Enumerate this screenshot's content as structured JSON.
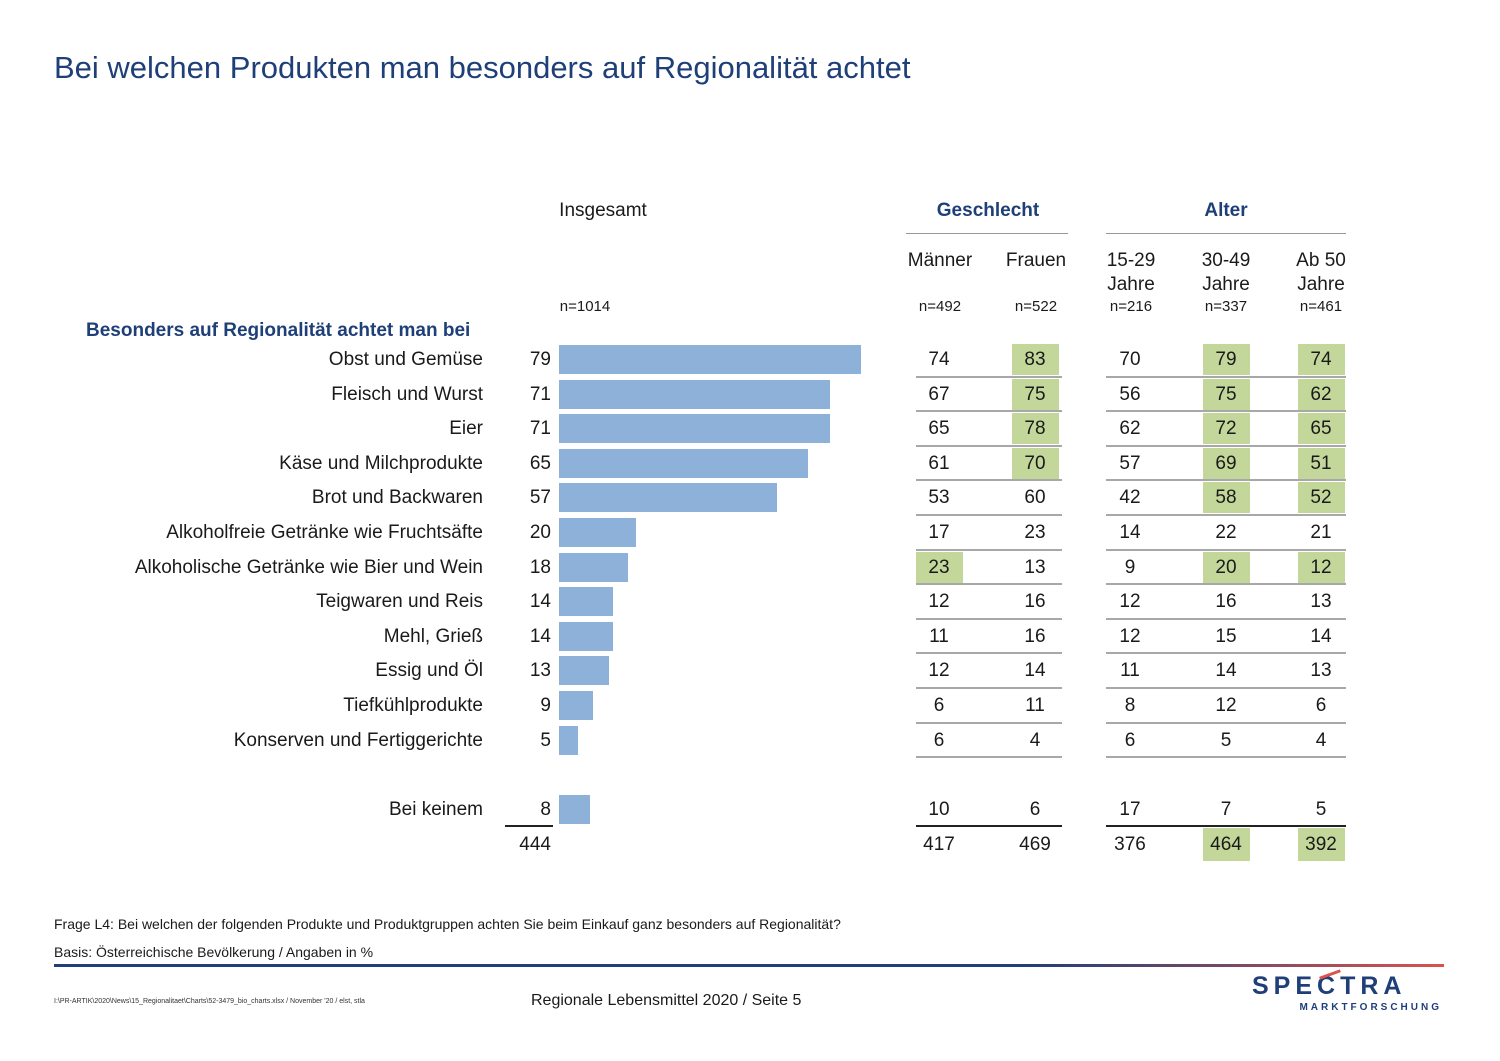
{
  "title": "Bei welchen Produkten man besonders auf Regionalität achtet",
  "headers": {
    "insgesamt": "Insgesamt",
    "geschlecht": "Geschlecht",
    "alter": "Alter",
    "maenner": "Männer",
    "frauen": "Frauen",
    "age1a": "15-29",
    "age1b": "Jahre",
    "age2a": "30-49",
    "age2b": "Jahre",
    "age3a": "Ab 50",
    "age3b": "Jahre"
  },
  "n": {
    "insgesamt": "n=1014",
    "maenner": "n=492",
    "frauen": "n=522",
    "age1": "n=216",
    "age2": "n=337",
    "age3": "n=461"
  },
  "section_label": "Besonders auf Regionalität achtet man bei",
  "chart_data": {
    "type": "table",
    "columns": [
      "Insgesamt",
      "Männer",
      "Frauen",
      "15-29 Jahre",
      "30-49 Jahre",
      "Ab 50 Jahre"
    ],
    "rows": [
      {
        "label": "Obst und Gemüse",
        "values": [
          79,
          74,
          83,
          70,
          79,
          74
        ],
        "highlight": [
          false,
          false,
          true,
          false,
          true,
          true
        ]
      },
      {
        "label": "Fleisch und Wurst",
        "values": [
          71,
          67,
          75,
          56,
          75,
          62
        ],
        "highlight": [
          false,
          false,
          true,
          false,
          true,
          true
        ]
      },
      {
        "label": "Eier",
        "values": [
          71,
          65,
          78,
          62,
          72,
          65
        ],
        "highlight": [
          false,
          false,
          true,
          false,
          true,
          true
        ]
      },
      {
        "label": "Käse und Milchprodukte",
        "values": [
          65,
          61,
          70,
          57,
          69,
          51
        ],
        "highlight": [
          false,
          false,
          true,
          false,
          true,
          true
        ]
      },
      {
        "label": "Brot und Backwaren",
        "values": [
          57,
          53,
          60,
          42,
          58,
          52
        ],
        "highlight": [
          false,
          false,
          false,
          false,
          true,
          true
        ]
      },
      {
        "label": "Alkoholfreie Getränke wie Fruchtsäfte",
        "values": [
          20,
          17,
          23,
          14,
          22,
          21
        ],
        "highlight": [
          false,
          false,
          false,
          false,
          false,
          false
        ]
      },
      {
        "label": "Alkoholische Getränke wie Bier und Wein",
        "values": [
          18,
          23,
          13,
          9,
          20,
          12
        ],
        "highlight": [
          false,
          true,
          false,
          false,
          true,
          true
        ]
      },
      {
        "label": "Teigwaren und Reis",
        "values": [
          14,
          12,
          16,
          12,
          16,
          13
        ],
        "highlight": [
          false,
          false,
          false,
          false,
          false,
          false
        ]
      },
      {
        "label": "Mehl, Grieß",
        "values": [
          14,
          11,
          16,
          12,
          15,
          14
        ],
        "highlight": [
          false,
          false,
          false,
          false,
          false,
          false
        ]
      },
      {
        "label": "Essig und Öl",
        "values": [
          13,
          12,
          14,
          11,
          14,
          13
        ],
        "highlight": [
          false,
          false,
          false,
          false,
          false,
          false
        ]
      },
      {
        "label": "Tiefkühlprodukte",
        "values": [
          9,
          6,
          11,
          8,
          12,
          6
        ],
        "highlight": [
          false,
          false,
          false,
          false,
          false,
          false
        ]
      },
      {
        "label": "Konserven und Fertiggerichte",
        "values": [
          5,
          6,
          4,
          6,
          5,
          4
        ],
        "highlight": [
          false,
          false,
          false,
          false,
          false,
          false
        ]
      }
    ],
    "none_row": {
      "label": "Bei keinem",
      "values": [
        8,
        10,
        6,
        17,
        7,
        5
      ],
      "highlight": [
        false,
        false,
        false,
        false,
        false,
        false
      ]
    },
    "totals": {
      "values": [
        444,
        417,
        469,
        376,
        464,
        392
      ],
      "highlight": [
        false,
        false,
        false,
        false,
        true,
        true
      ]
    },
    "bar_axis_max": 79,
    "colors": {
      "bar": "#8eb1d9",
      "highlight": "#c4d79b",
      "title": "#1f3f78"
    }
  },
  "footer": {
    "question": "Frage L4: Bei welchen der folgenden Produkte und Produktgruppen achten Sie beim Einkauf ganz besonders auf Regionalität?",
    "basis": "Basis: Österreichische Bevölkerung / Angaben in %",
    "path": "I:\\PR-ARTIK\\2020\\News\\15_Regionalitaet\\Charts\\52-3479_bio_charts.xlsx / November '20 / elst, stla",
    "page": "Regionale Lebensmittel 2020  /  Seite  5",
    "logo_main": "SPECTRA",
    "logo_sub": "MARKTFORSCHUNG"
  }
}
